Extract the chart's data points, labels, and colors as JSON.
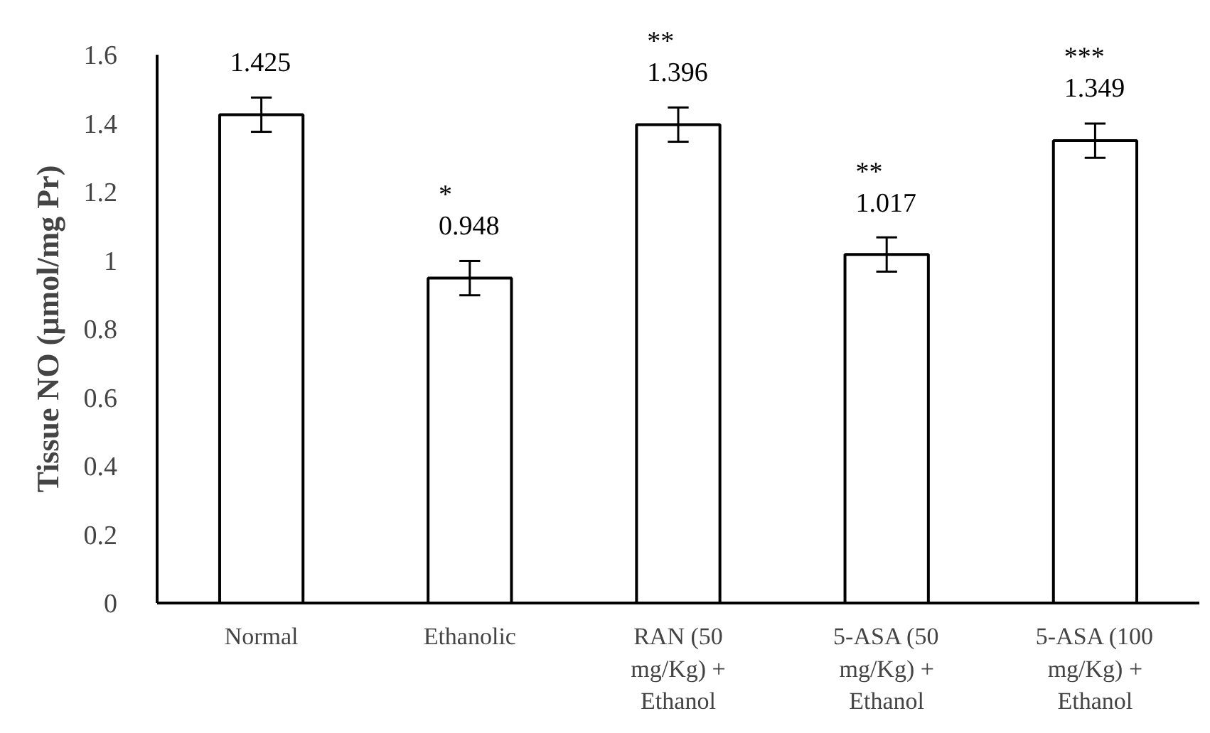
{
  "chart_data": {
    "type": "bar",
    "ylabel": "Tissue NO (µmol/mg Pr)",
    "categories": [
      "Normal",
      "Ethanolic",
      "RAN (50 mg/Kg) + Ethanol",
      "5-ASA (50 mg/Kg) + Ethanol",
      "5-ASA (100 mg/Kg) + Ethanol"
    ],
    "values": [
      1.425,
      0.948,
      1.396,
      1.017,
      1.349
    ],
    "errors": [
      0.05,
      0.05,
      0.05,
      0.05,
      0.05
    ],
    "color": "#ffffff",
    "value_labels": [
      "1.425",
      "*\n0.948",
      "**\n1.396",
      "**\n1.017",
      "***\n1.349"
    ],
    "ylim": [
      0,
      1.6
    ],
    "yticks": [
      0,
      0.2,
      0.4,
      0.6,
      0.8,
      1,
      1.2,
      1.4,
      1.6
    ],
    "grid": false
  }
}
